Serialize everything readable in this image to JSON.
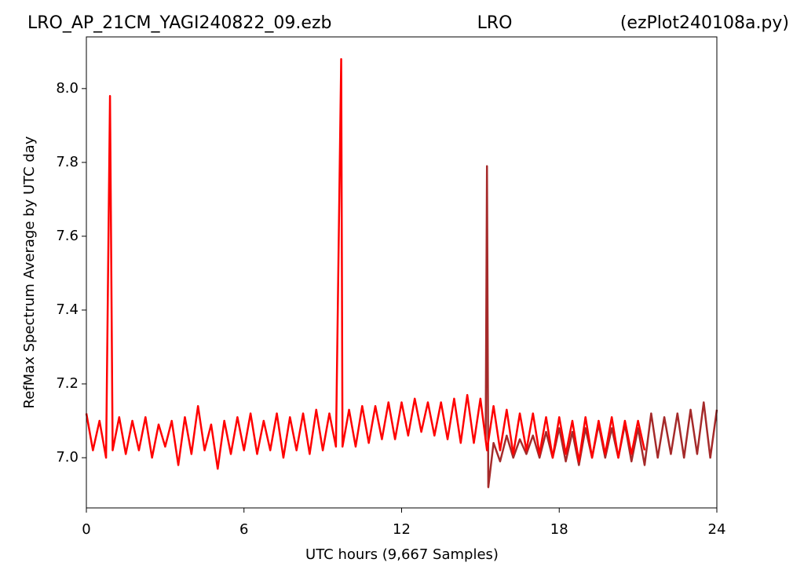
{
  "chart_data": {
    "type": "line",
    "title_left": "LRO_AP_21CM_YAGI240822_09.ezb",
    "title_center": "LRO",
    "title_right": "(ezPlot240108a.py)",
    "x_label": "UTC hours  (9,667 Samples)",
    "y_label": "RefMax Spectrum Average by UTC day",
    "xlim": [
      0,
      24
    ],
    "xticks": [
      0,
      6,
      12,
      18,
      24
    ],
    "ylim": [
      6.864,
      8.14
    ],
    "yticks": [
      {
        "value": 7,
        "label": "7.0"
      },
      7.2,
      7.4,
      7.6,
      7.8,
      {
        "value": 8,
        "label": "8.0"
      }
    ],
    "series": [
      {
        "color": "#a52a2a",
        "x": [
          15.2,
          15.25,
          15.3,
          15.5,
          15.75,
          16,
          16.25,
          16.5,
          16.75,
          17,
          17.25,
          17.5,
          17.75,
          18,
          18.25,
          18.5,
          18.75,
          19,
          19.25,
          19.5,
          19.75,
          20,
          20.25,
          20.5,
          20.75,
          21,
          21.25,
          21.5,
          21.75,
          22,
          22.25,
          22.5,
          22.75,
          23,
          23.25,
          23.5,
          23.75,
          24
        ],
        "values": [
          7.05,
          7.79,
          6.92,
          7.04,
          6.99,
          7.06,
          7.0,
          7.05,
          7.01,
          7.06,
          7.0,
          7.07,
          7.0,
          7.08,
          6.99,
          7.07,
          6.98,
          7.08,
          7.0,
          7.09,
          7.0,
          7.08,
          7.0,
          7.09,
          6.99,
          7.08,
          6.98,
          7.12,
          7.0,
          7.11,
          7.01,
          7.12,
          7.0,
          7.13,
          7.01,
          7.15,
          7.0,
          7.13
        ]
      },
      {
        "color": "#ff0000",
        "x": [
          0,
          0.25,
          0.5,
          0.75,
          0.9,
          1,
          1.25,
          1.5,
          1.75,
          2,
          2.25,
          2.5,
          2.75,
          3,
          3.25,
          3.5,
          3.75,
          4,
          4.25,
          4.5,
          4.75,
          5,
          5.25,
          5.5,
          5.75,
          6,
          6.25,
          6.5,
          6.75,
          7,
          7.25,
          7.5,
          7.75,
          8,
          8.25,
          8.5,
          8.75,
          9,
          9.25,
          9.5,
          9.7,
          9.75,
          10,
          10.25,
          10.5,
          10.75,
          11,
          11.25,
          11.5,
          11.75,
          12,
          12.25,
          12.5,
          12.75,
          13,
          13.25,
          13.5,
          13.75,
          14,
          14.25,
          14.5,
          14.75,
          15,
          15.25,
          15.5,
          15.75,
          16,
          16.25,
          16.5,
          16.75,
          17,
          17.25,
          17.5,
          17.75,
          18,
          18.25,
          18.5,
          18.75,
          19,
          19.25,
          19.5,
          19.75,
          20,
          20.25,
          20.5,
          20.75,
          21,
          21.25
        ],
        "values": [
          7.12,
          7.02,
          7.1,
          7.0,
          7.98,
          7.02,
          7.11,
          7.01,
          7.1,
          7.02,
          7.11,
          7.0,
          7.09,
          7.03,
          7.1,
          6.98,
          7.11,
          7.01,
          7.14,
          7.02,
          7.09,
          6.97,
          7.1,
          7.01,
          7.11,
          7.02,
          7.12,
          7.01,
          7.1,
          7.02,
          7.12,
          7.0,
          7.11,
          7.02,
          7.12,
          7.01,
          7.13,
          7.02,
          7.12,
          7.03,
          8.08,
          7.03,
          7.13,
          7.03,
          7.14,
          7.04,
          7.14,
          7.05,
          7.15,
          7.05,
          7.15,
          7.06,
          7.16,
          7.07,
          7.15,
          7.06,
          7.15,
          7.05,
          7.16,
          7.04,
          7.17,
          7.04,
          7.16,
          7.02,
          7.14,
          7.02,
          7.13,
          7.01,
          7.12,
          7.02,
          7.12,
          7.01,
          7.11,
          7.0,
          7.11,
          7.01,
          7.1,
          6.99,
          7.11,
          7.0,
          7.1,
          7.01,
          7.11,
          7.0,
          7.1,
          7.01,
          7.1,
          7.02
        ]
      }
    ]
  }
}
